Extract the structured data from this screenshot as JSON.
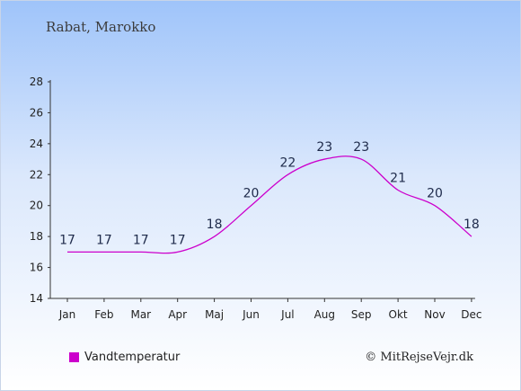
{
  "page": {
    "location_title": "Rabat, Marokko",
    "credit": "© MitRejseVejr.dk"
  },
  "colors": {
    "series": "#cc00cc",
    "axis": "#333333",
    "label": "#1e2a4a"
  },
  "chart_data": {
    "type": "line",
    "title": "Rabat, Marokko",
    "xlabel": "",
    "ylabel": "",
    "categories": [
      "Jan",
      "Feb",
      "Mar",
      "Apr",
      "Maj",
      "Jun",
      "Jul",
      "Aug",
      "Sep",
      "Okt",
      "Nov",
      "Dec"
    ],
    "series": [
      {
        "name": "Vandtemperatur",
        "values": [
          17,
          17,
          17,
          17,
          18,
          20,
          22,
          23,
          23,
          21,
          20,
          18
        ]
      }
    ],
    "ylim": [
      14,
      28
    ],
    "yticks": [
      14,
      16,
      18,
      20,
      22,
      24,
      26,
      28
    ],
    "grid": false,
    "legend_position": "bottom-left"
  }
}
